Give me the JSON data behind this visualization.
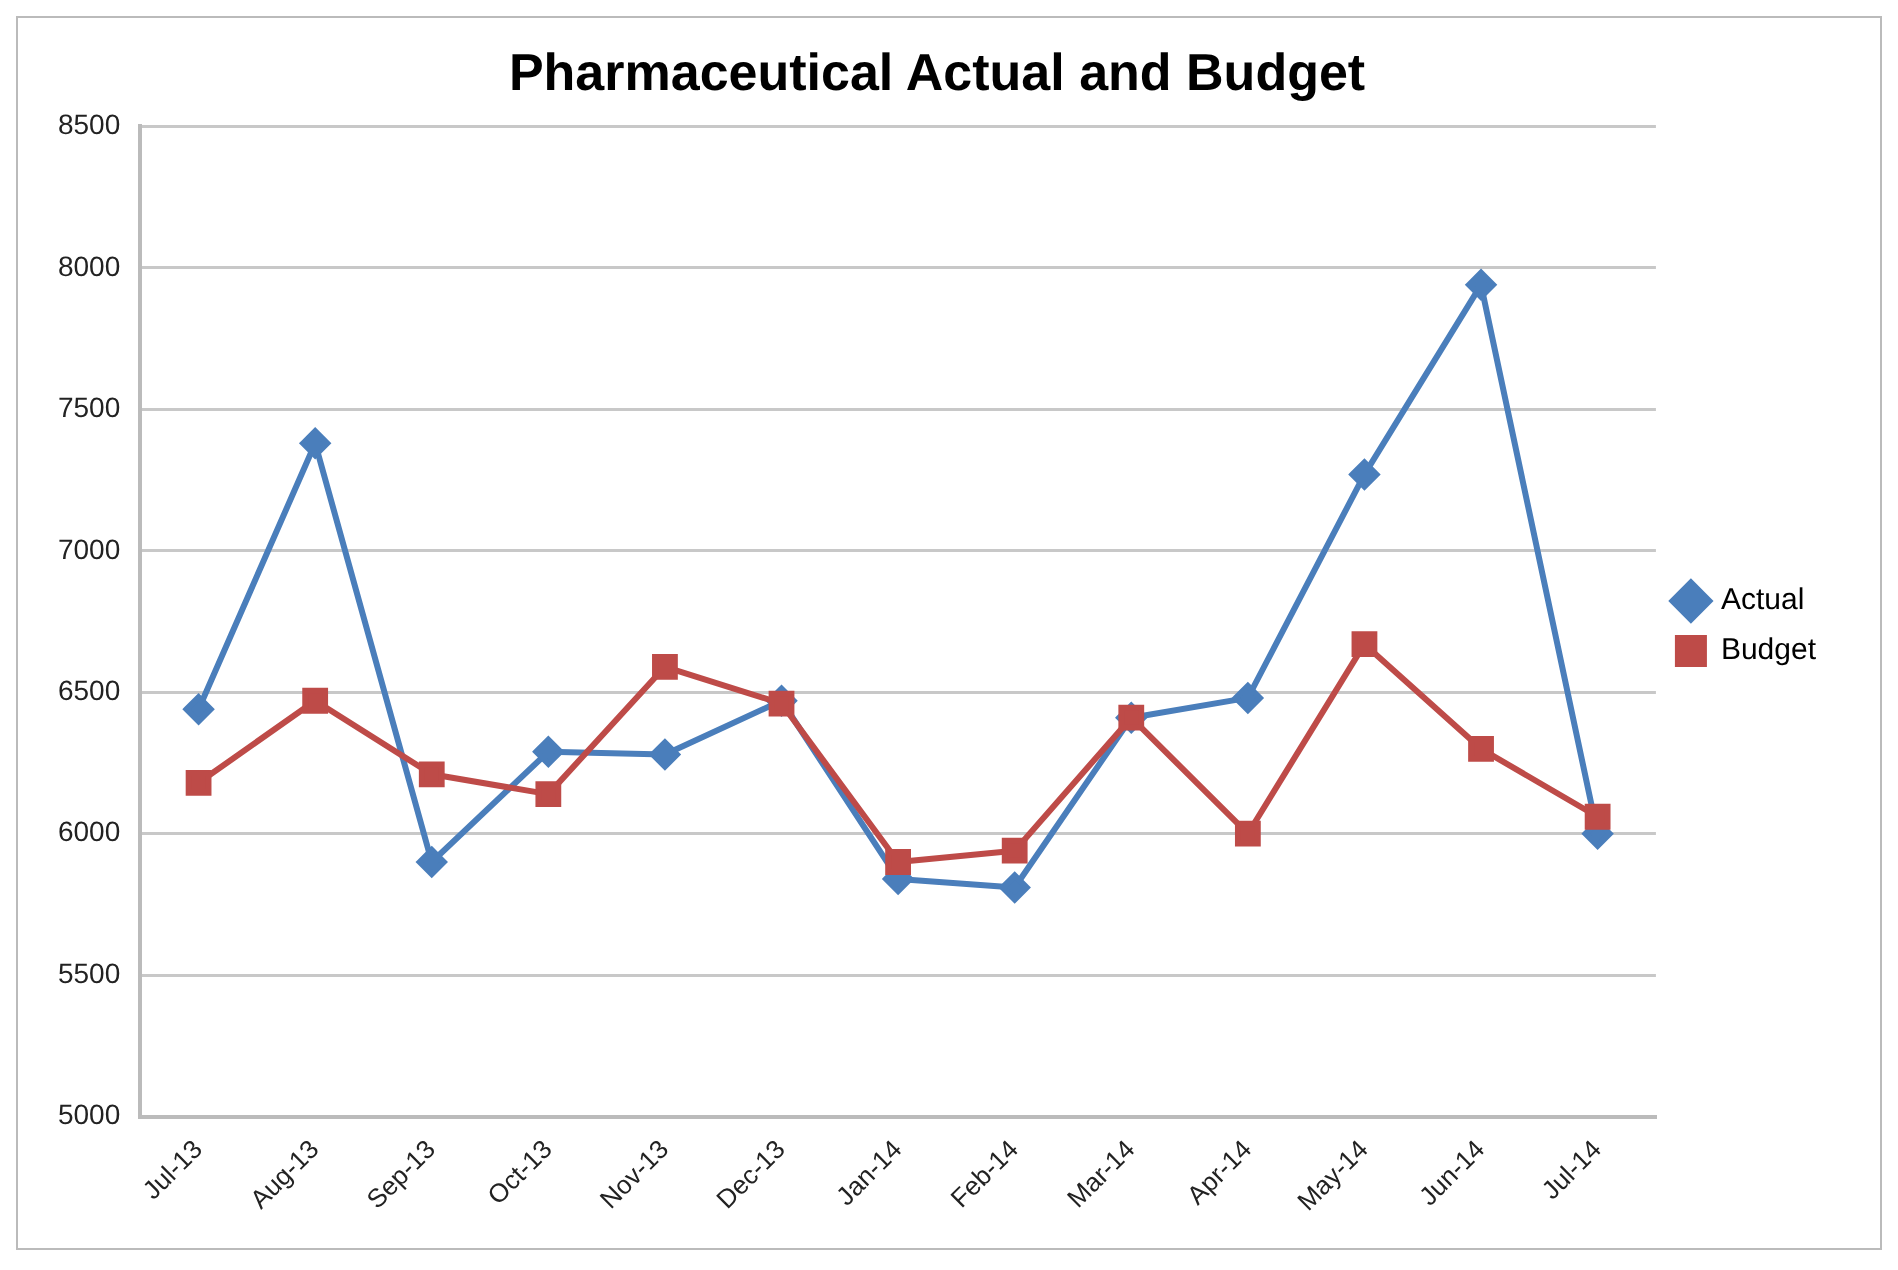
{
  "chart_data": {
    "type": "line",
    "title": "Pharmaceutical Actual and Budget",
    "categories": [
      "Jul-13",
      "Aug-13",
      "Sep-13",
      "Oct-13",
      "Nov-13",
      "Dec-13",
      "Jan-14",
      "Feb-14",
      "Mar-14",
      "Apr-14",
      "May-14",
      "Jun-14",
      "Jul-14"
    ],
    "series": [
      {
        "name": "Actual",
        "color": "#4a7ebb",
        "marker": "diamond",
        "values": [
          6440,
          7380,
          5900,
          6290,
          6280,
          6470,
          5840,
          5810,
          6410,
          6480,
          7270,
          7940,
          6000
        ]
      },
      {
        "name": "Budget",
        "color": "#be4b48",
        "marker": "square",
        "values": [
          6180,
          6470,
          6210,
          6140,
          6590,
          6460,
          5900,
          5940,
          6410,
          6000,
          6670,
          6300,
          6060
        ]
      }
    ],
    "ylim": [
      5000,
      8500
    ],
    "yticks": [
      5000,
      5500,
      6000,
      6500,
      7000,
      7500,
      8000,
      8500
    ],
    "grid": "y",
    "legend": "right",
    "line_style": "solid"
  }
}
